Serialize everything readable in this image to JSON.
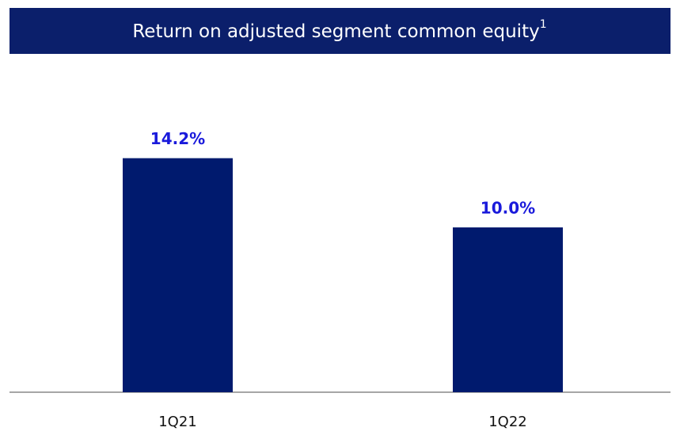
{
  "chart_data": {
    "type": "bar",
    "title": "Return on adjusted segment common equity",
    "title_superscript": "1",
    "categories": [
      "1Q21",
      "1Q22"
    ],
    "values": [
      14.2,
      10.0
    ],
    "value_labels": [
      "14.2%",
      "10.0%"
    ],
    "color": "#001a6e",
    "label_color": "#1a1adb",
    "ylim": [
      0,
      20
    ]
  }
}
